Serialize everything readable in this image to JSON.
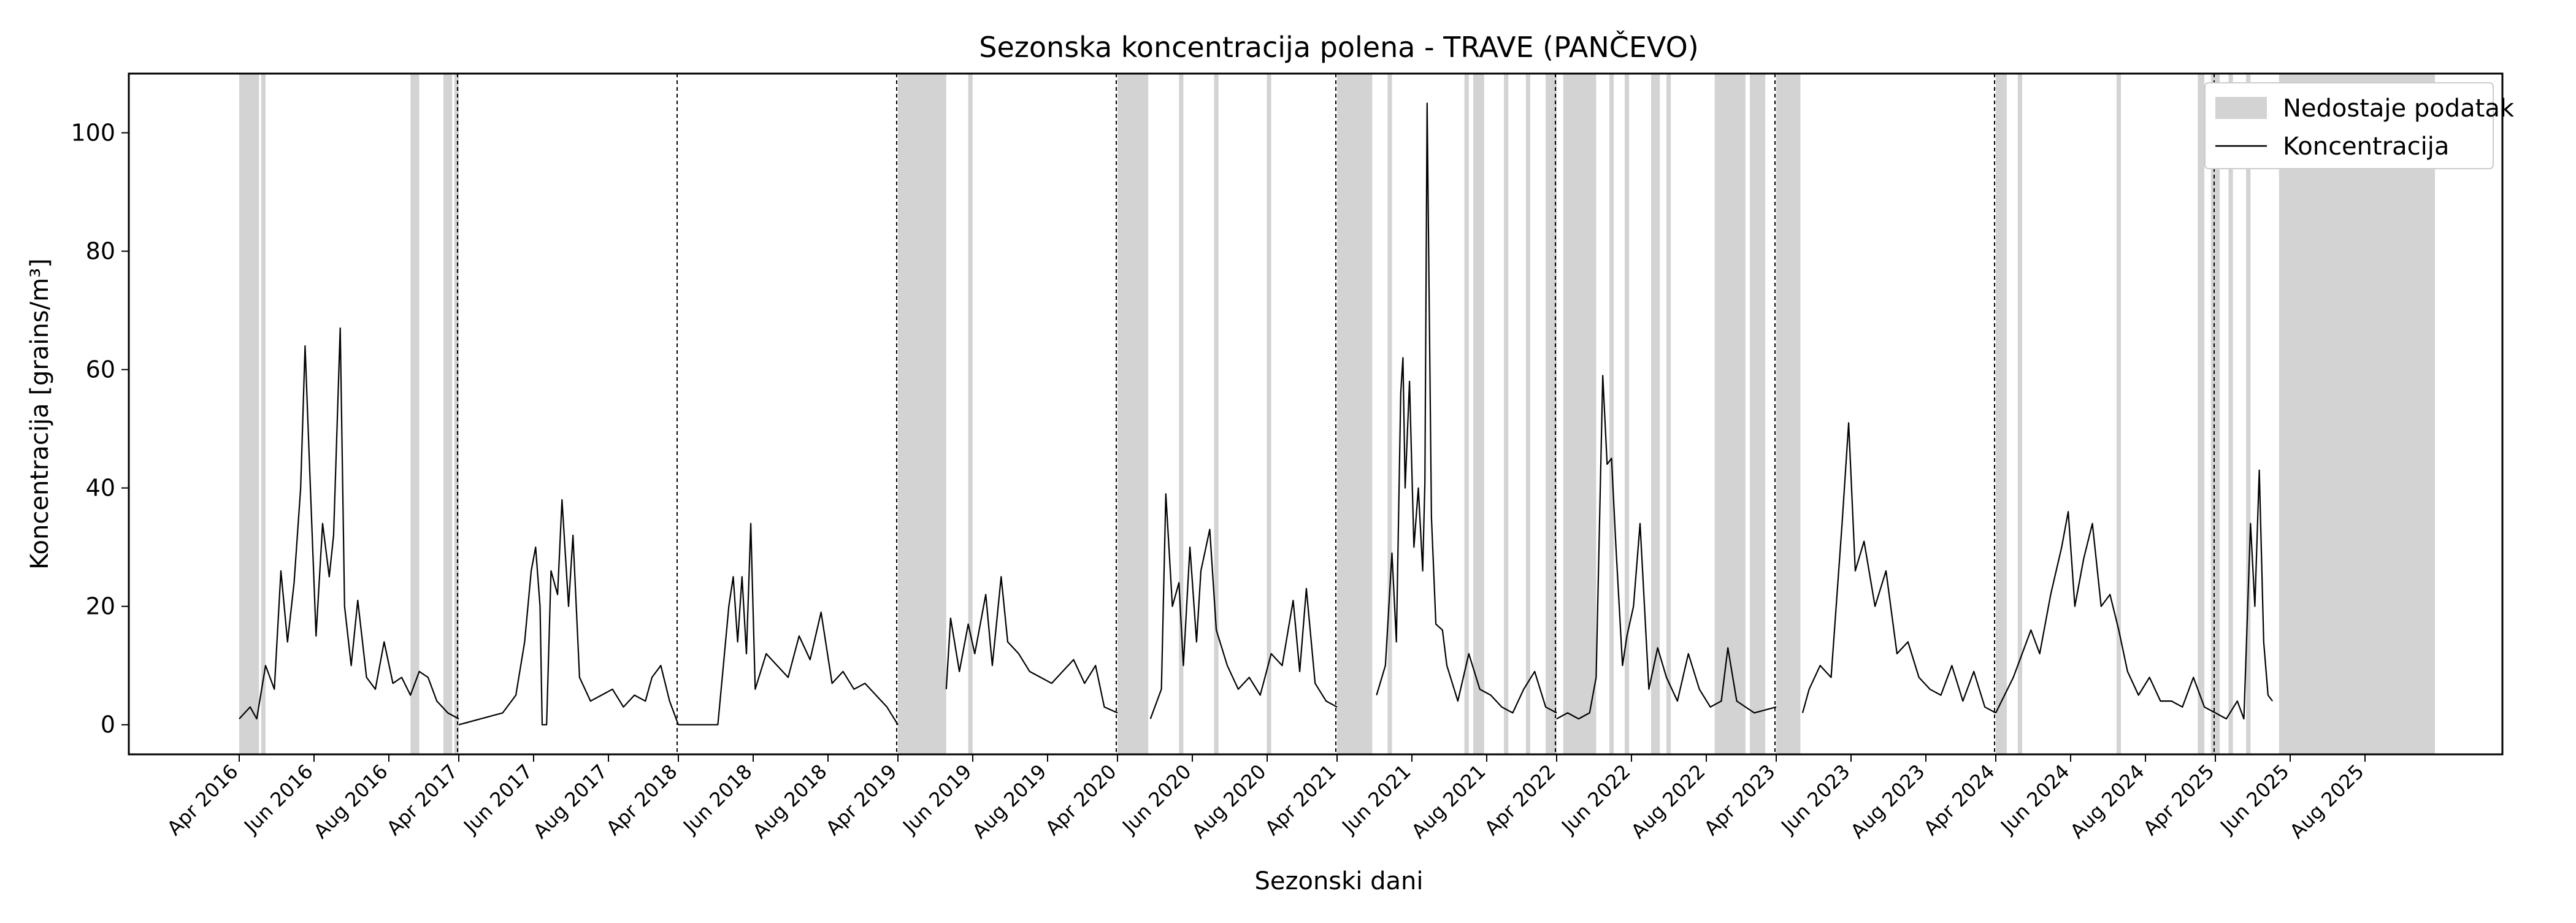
{
  "chart_data": {
    "type": "line",
    "title": "Sezonska koncentracija polena - TRAVE (PANČEVO)",
    "xlabel": "Sezonski dani",
    "ylabel": "Koncentracija [grains/m³]",
    "ylim": [
      -5,
      110
    ],
    "yticks": [
      0,
      20,
      40,
      60,
      80,
      100
    ],
    "legend": {
      "placement": "top-right",
      "entries": [
        "Nedostaje podatak",
        "Koncentracija"
      ]
    },
    "colors": {
      "line": "#000000",
      "missing": "#d3d3d3",
      "divider": "#000000"
    },
    "seasons": [
      {
        "year": 2016,
        "tick_labels": [
          "Apr 2016",
          "Jun 2016",
          "Aug 2016"
        ],
        "peaks": [
          [
            0.0,
            1
          ],
          [
            0.05,
            3
          ],
          [
            0.08,
            1
          ],
          [
            0.12,
            10
          ],
          [
            0.16,
            6
          ],
          [
            0.19,
            26
          ],
          [
            0.22,
            14
          ],
          [
            0.25,
            24
          ],
          [
            0.28,
            40
          ],
          [
            0.3,
            64
          ],
          [
            0.32,
            44
          ],
          [
            0.35,
            15
          ],
          [
            0.38,
            34
          ],
          [
            0.41,
            25
          ],
          [
            0.43,
            32
          ],
          [
            0.46,
            67
          ],
          [
            0.48,
            20
          ],
          [
            0.51,
            10
          ],
          [
            0.54,
            21
          ],
          [
            0.58,
            8
          ],
          [
            0.62,
            6
          ],
          [
            0.66,
            14
          ],
          [
            0.7,
            7
          ],
          [
            0.74,
            8
          ],
          [
            0.78,
            5
          ],
          [
            0.82,
            9
          ],
          [
            0.86,
            8
          ],
          [
            0.9,
            4
          ],
          [
            0.95,
            2
          ],
          [
            1.0,
            1
          ]
        ],
        "missing": [
          [
            0.0,
            0.09
          ],
          [
            0.1,
            0.12
          ],
          [
            0.78,
            0.82
          ],
          [
            0.93,
            0.97
          ],
          [
            0.98,
            1.0
          ]
        ]
      },
      {
        "year": 2017,
        "tick_labels": [
          "Apr 2017",
          "Jun 2017",
          "Aug 2017"
        ],
        "peaks": [
          [
            0.0,
            0
          ],
          [
            0.1,
            1
          ],
          [
            0.2,
            2
          ],
          [
            0.26,
            5
          ],
          [
            0.3,
            14
          ],
          [
            0.33,
            26
          ],
          [
            0.35,
            30
          ],
          [
            0.37,
            20
          ],
          [
            0.38,
            0
          ],
          [
            0.4,
            0
          ],
          [
            0.42,
            26
          ],
          [
            0.45,
            22
          ],
          [
            0.47,
            38
          ],
          [
            0.5,
            20
          ],
          [
            0.52,
            32
          ],
          [
            0.55,
            8
          ],
          [
            0.6,
            4
          ],
          [
            0.65,
            5
          ],
          [
            0.7,
            6
          ],
          [
            0.75,
            3
          ],
          [
            0.8,
            5
          ],
          [
            0.85,
            4
          ],
          [
            0.88,
            8
          ],
          [
            0.92,
            10
          ],
          [
            0.96,
            4
          ],
          [
            1.0,
            0
          ]
        ],
        "missing": []
      },
      {
        "year": 2018,
        "tick_labels": [
          "Apr 2018",
          "Jun 2018",
          "Aug 2018"
        ],
        "peaks": [
          [
            0.0,
            0
          ],
          [
            0.18,
            0
          ],
          [
            0.2,
            8
          ],
          [
            0.23,
            20
          ],
          [
            0.25,
            25
          ],
          [
            0.27,
            14
          ],
          [
            0.29,
            25
          ],
          [
            0.31,
            12
          ],
          [
            0.33,
            34
          ],
          [
            0.35,
            6
          ],
          [
            0.4,
            12
          ],
          [
            0.45,
            10
          ],
          [
            0.5,
            8
          ],
          [
            0.55,
            15
          ],
          [
            0.6,
            11
          ],
          [
            0.65,
            19
          ],
          [
            0.7,
            7
          ],
          [
            0.75,
            9
          ],
          [
            0.8,
            6
          ],
          [
            0.85,
            7
          ],
          [
            0.9,
            5
          ],
          [
            0.95,
            3
          ],
          [
            1.0,
            0
          ]
        ],
        "missing": []
      },
      {
        "year": 2019,
        "tick_labels": [
          "Apr 2019",
          "Jun 2019",
          "Aug 2019"
        ],
        "peaks": [
          [
            0.22,
            6
          ],
          [
            0.24,
            18
          ],
          [
            0.28,
            9
          ],
          [
            0.32,
            17
          ],
          [
            0.35,
            12
          ],
          [
            0.4,
            22
          ],
          [
            0.43,
            10
          ],
          [
            0.47,
            25
          ],
          [
            0.5,
            14
          ],
          [
            0.55,
            12
          ],
          [
            0.6,
            9
          ],
          [
            0.65,
            8
          ],
          [
            0.7,
            7
          ],
          [
            0.75,
            9
          ],
          [
            0.8,
            11
          ],
          [
            0.85,
            7
          ],
          [
            0.9,
            10
          ],
          [
            0.94,
            3
          ],
          [
            1.0,
            2
          ]
        ],
        "missing": [
          [
            0.0,
            0.22
          ],
          [
            0.32,
            0.34
          ]
        ]
      },
      {
        "year": 2020,
        "tick_labels": [
          "Apr 2020",
          "Jun 2020",
          "Aug 2020"
        ],
        "peaks": [
          [
            0.15,
            1
          ],
          [
            0.2,
            6
          ],
          [
            0.22,
            39
          ],
          [
            0.25,
            20
          ],
          [
            0.28,
            24
          ],
          [
            0.3,
            10
          ],
          [
            0.33,
            30
          ],
          [
            0.36,
            14
          ],
          [
            0.38,
            26
          ],
          [
            0.42,
            33
          ],
          [
            0.45,
            16
          ],
          [
            0.5,
            10
          ],
          [
            0.55,
            6
          ],
          [
            0.6,
            8
          ],
          [
            0.65,
            5
          ],
          [
            0.7,
            12
          ],
          [
            0.75,
            10
          ],
          [
            0.8,
            21
          ],
          [
            0.83,
            9
          ],
          [
            0.86,
            23
          ],
          [
            0.9,
            7
          ],
          [
            0.95,
            4
          ],
          [
            1.0,
            3
          ]
        ],
        "missing": [
          [
            0.0,
            0.14
          ],
          [
            0.28,
            0.3
          ],
          [
            0.44,
            0.46
          ],
          [
            0.68,
            0.7
          ]
        ]
      },
      {
        "year": 2021,
        "tick_labels": [
          "Apr 2021",
          "Jun 2021",
          "Aug 2021"
        ],
        "peaks": [
          [
            0.18,
            5
          ],
          [
            0.22,
            10
          ],
          [
            0.25,
            29
          ],
          [
            0.27,
            14
          ],
          [
            0.29,
            56
          ],
          [
            0.3,
            62
          ],
          [
            0.31,
            40
          ],
          [
            0.33,
            58
          ],
          [
            0.35,
            30
          ],
          [
            0.37,
            40
          ],
          [
            0.39,
            26
          ],
          [
            0.4,
            41
          ],
          [
            0.41,
            105
          ],
          [
            0.43,
            35
          ],
          [
            0.45,
            17
          ],
          [
            0.48,
            16
          ],
          [
            0.5,
            10
          ],
          [
            0.55,
            4
          ],
          [
            0.6,
            12
          ],
          [
            0.65,
            6
          ],
          [
            0.7,
            5
          ],
          [
            0.75,
            3
          ],
          [
            0.8,
            2
          ],
          [
            0.85,
            6
          ],
          [
            0.9,
            9
          ],
          [
            0.95,
            3
          ],
          [
            1.0,
            2
          ]
        ],
        "missing": [
          [
            0.0,
            0.16
          ],
          [
            0.23,
            0.25
          ],
          [
            0.58,
            0.6
          ],
          [
            0.62,
            0.67
          ],
          [
            0.76,
            0.78
          ],
          [
            0.86,
            0.88
          ],
          [
            0.95,
            1.0
          ]
        ]
      },
      {
        "year": 2022,
        "tick_labels": [
          "Apr 2022",
          "Jun 2022",
          "Aug 2022"
        ],
        "peaks": [
          [
            0.0,
            1
          ],
          [
            0.05,
            2
          ],
          [
            0.1,
            1
          ],
          [
            0.15,
            2
          ],
          [
            0.18,
            8
          ],
          [
            0.21,
            59
          ],
          [
            0.23,
            44
          ],
          [
            0.25,
            45
          ],
          [
            0.27,
            30
          ],
          [
            0.3,
            10
          ],
          [
            0.32,
            15
          ],
          [
            0.35,
            20
          ],
          [
            0.38,
            34
          ],
          [
            0.42,
            6
          ],
          [
            0.46,
            13
          ],
          [
            0.5,
            8
          ],
          [
            0.55,
            4
          ],
          [
            0.6,
            12
          ],
          [
            0.65,
            6
          ],
          [
            0.7,
            3
          ],
          [
            0.75,
            4
          ],
          [
            0.78,
            13
          ],
          [
            0.82,
            4
          ],
          [
            0.9,
            2
          ],
          [
            1.0,
            3
          ]
        ],
        "missing": [
          [
            0.03,
            0.18
          ],
          [
            0.24,
            0.26
          ],
          [
            0.31,
            0.33
          ],
          [
            0.43,
            0.47
          ],
          [
            0.5,
            0.52
          ],
          [
            0.72,
            0.86
          ],
          [
            0.88,
            0.95
          ]
        ]
      },
      {
        "year": 2023,
        "tick_labels": [
          "Apr 2023",
          "Jun 2023",
          "Aug 2023"
        ],
        "peaks": [
          [
            0.12,
            2
          ],
          [
            0.15,
            6
          ],
          [
            0.2,
            10
          ],
          [
            0.25,
            8
          ],
          [
            0.3,
            34
          ],
          [
            0.33,
            51
          ],
          [
            0.36,
            26
          ],
          [
            0.4,
            31
          ],
          [
            0.45,
            20
          ],
          [
            0.5,
            26
          ],
          [
            0.55,
            12
          ],
          [
            0.6,
            14
          ],
          [
            0.65,
            8
          ],
          [
            0.7,
            6
          ],
          [
            0.75,
            5
          ],
          [
            0.8,
            10
          ],
          [
            0.85,
            4
          ],
          [
            0.9,
            9
          ],
          [
            0.95,
            3
          ],
          [
            1.0,
            2
          ]
        ],
        "missing": [
          [
            0.0,
            0.11
          ]
        ]
      },
      {
        "year": 2024,
        "tick_labels": [
          "Apr 2024",
          "Jun 2024",
          "Aug 2024"
        ],
        "peaks": [
          [
            0.0,
            2
          ],
          [
            0.08,
            8
          ],
          [
            0.12,
            12
          ],
          [
            0.16,
            16
          ],
          [
            0.2,
            12
          ],
          [
            0.25,
            22
          ],
          [
            0.3,
            30
          ],
          [
            0.33,
            36
          ],
          [
            0.36,
            20
          ],
          [
            0.4,
            28
          ],
          [
            0.44,
            34
          ],
          [
            0.48,
            20
          ],
          [
            0.52,
            22
          ],
          [
            0.56,
            16
          ],
          [
            0.6,
            9
          ],
          [
            0.65,
            5
          ],
          [
            0.7,
            8
          ],
          [
            0.75,
            4
          ],
          [
            0.8,
            4
          ],
          [
            0.85,
            3
          ],
          [
            0.9,
            8
          ],
          [
            0.95,
            3
          ],
          [
            1.0,
            2
          ]
        ],
        "missing": [
          [
            0.0,
            0.05
          ],
          [
            0.1,
            0.12
          ],
          [
            0.55,
            0.57
          ],
          [
            0.92,
            0.95
          ],
          [
            0.98,
            1.0
          ]
        ]
      },
      {
        "year": 2025,
        "tick_labels": [
          "Apr 2025",
          "Jun 2025",
          "Aug 2025"
        ],
        "peaks": [
          [
            0.0,
            2
          ],
          [
            0.05,
            1
          ],
          [
            0.1,
            4
          ],
          [
            0.13,
            1
          ],
          [
            0.16,
            34
          ],
          [
            0.18,
            20
          ],
          [
            0.2,
            43
          ],
          [
            0.22,
            14
          ],
          [
            0.24,
            5
          ],
          [
            0.26,
            4
          ]
        ],
        "missing": [
          [
            0.0,
            0.02
          ],
          [
            0.06,
            0.08
          ],
          [
            0.14,
            0.16
          ],
          [
            0.29,
            1.0
          ]
        ]
      }
    ]
  }
}
